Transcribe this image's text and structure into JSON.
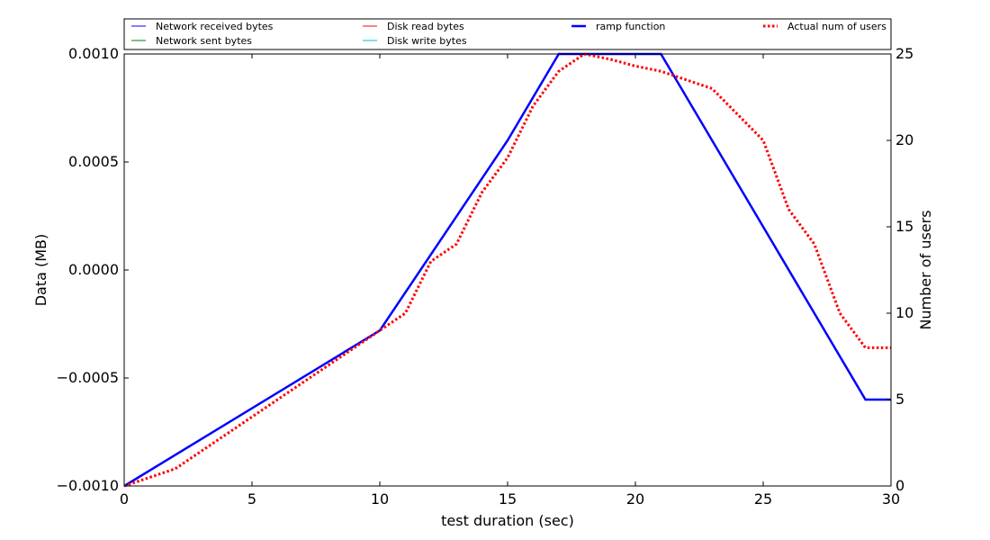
{
  "chart_data": {
    "type": "line",
    "xlabel": "test duration (sec)",
    "ylabel_left": "Data (MB)",
    "ylabel_right": "Number of users",
    "xlim": [
      0,
      30
    ],
    "ylim_left": [
      -0.001,
      0.001
    ],
    "ylim_right": [
      0,
      25
    ],
    "x_ticks": [
      0,
      5,
      10,
      15,
      20,
      25,
      30
    ],
    "x_tick_labels": [
      "0",
      "5",
      "10",
      "15",
      "20",
      "25",
      "30"
    ],
    "y_left_ticks": [
      -0.001,
      -0.0005,
      0,
      0.0005,
      0.001
    ],
    "y_left_tick_labels": [
      "−0.0010",
      "−0.0005",
      "0.0000",
      "0.0005",
      "0.0010"
    ],
    "y_right_ticks": [
      0,
      5,
      10,
      15,
      20,
      25
    ],
    "y_right_tick_labels": [
      "0",
      "5",
      "10",
      "15",
      "20",
      "25"
    ],
    "grid": false,
    "legend_position": "top, above plot",
    "legend": [
      {
        "label": "Network received bytes",
        "color": "#0000ff",
        "style": "solid",
        "width": 1
      },
      {
        "label": "Network sent bytes",
        "color": "#008000",
        "style": "solid",
        "width": 1
      },
      {
        "label": "Disk read bytes",
        "color": "#ff0000",
        "style": "solid",
        "width": 1
      },
      {
        "label": "Disk write bytes",
        "color": "#00bfbf",
        "style": "solid",
        "width": 1
      },
      {
        "label": "ramp function",
        "color": "#0000ff",
        "style": "solid",
        "width": 2.5
      },
      {
        "label": "Actual num of users",
        "color": "#ff0000",
        "style": "dotted",
        "width": 3
      }
    ],
    "series": [
      {
        "name": "ramp function",
        "axis": "right",
        "color": "#0000ff",
        "style": "solid",
        "width": 2.5,
        "x": [
          0,
          10,
          15,
          17,
          21,
          29,
          30
        ],
        "y": [
          0,
          9,
          20,
          25,
          25,
          5,
          5
        ]
      },
      {
        "name": "Actual num of users",
        "axis": "right",
        "color": "#ff0000",
        "style": "dotted",
        "width": 3,
        "x": [
          0,
          1,
          2,
          3,
          4,
          5,
          6,
          7,
          8,
          9,
          10,
          11,
          12,
          13,
          14,
          15,
          16,
          17,
          18,
          19,
          20,
          21,
          22,
          23,
          24,
          25,
          26,
          27,
          28,
          29,
          30
        ],
        "y": [
          0,
          0.5,
          1,
          2,
          3,
          4,
          5,
          6,
          7,
          8,
          9,
          10,
          13,
          14,
          17,
          19,
          22,
          24,
          25,
          24.7,
          24.3,
          24,
          23.5,
          23,
          21.5,
          20,
          16,
          14,
          10,
          8,
          8
        ]
      }
    ]
  }
}
